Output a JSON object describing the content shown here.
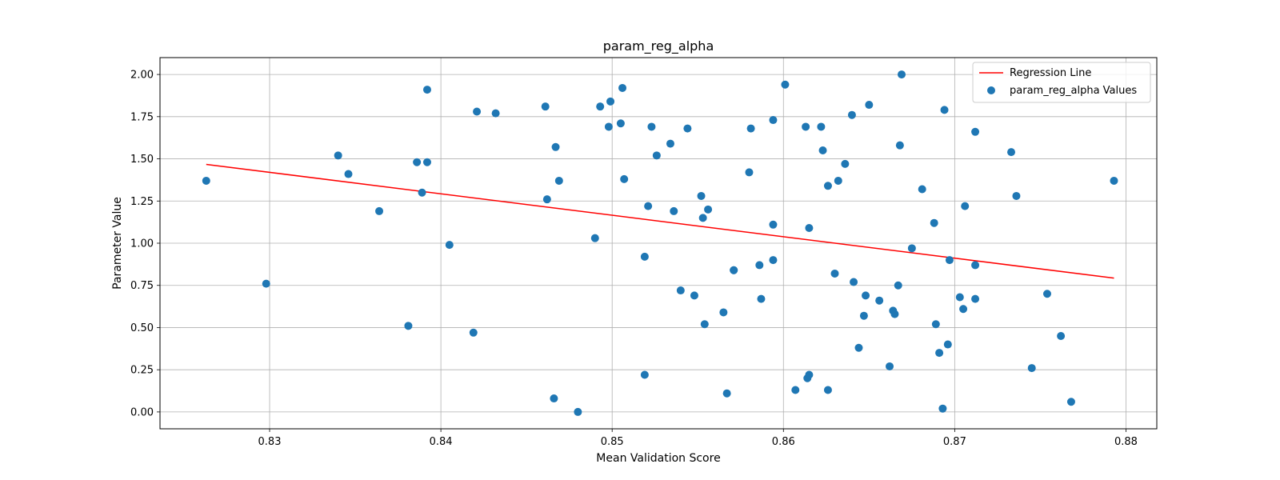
{
  "chart_data": {
    "type": "scatter",
    "title": "param_reg_alpha",
    "xlabel": "Mean Validation Score",
    "ylabel": "Parameter Value",
    "xlim": [
      0.8236,
      0.8818
    ],
    "ylim": [
      -0.1,
      2.1
    ],
    "xticks": [
      0.83,
      0.84,
      0.85,
      0.86,
      0.87,
      0.88
    ],
    "xtick_labels": [
      "0.83",
      "0.84",
      "0.85",
      "0.86",
      "0.87",
      "0.88"
    ],
    "yticks": [
      0.0,
      0.25,
      0.5,
      0.75,
      1.0,
      1.25,
      1.5,
      1.75,
      2.0
    ],
    "ytick_labels": [
      "0.00",
      "0.25",
      "0.50",
      "0.75",
      "1.00",
      "1.25",
      "1.50",
      "1.75",
      "2.00"
    ],
    "grid": true,
    "legend_position": "top-right",
    "colors": {
      "scatter": "#1f77b4",
      "regression": "#ff0000"
    },
    "regression": {
      "name": "Regression Line",
      "x": [
        0.8263,
        0.8793
      ],
      "y": [
        1.467,
        0.793
      ]
    },
    "series": [
      {
        "name": "param_reg_alpha Values",
        "points": [
          [
            0.8263,
            1.37
          ],
          [
            0.8298,
            0.76
          ],
          [
            0.834,
            1.52
          ],
          [
            0.8346,
            1.41
          ],
          [
            0.8364,
            1.19
          ],
          [
            0.8381,
            0.51
          ],
          [
            0.8386,
            1.48
          ],
          [
            0.8389,
            1.3
          ],
          [
            0.8392,
            1.48
          ],
          [
            0.8392,
            1.91
          ],
          [
            0.8405,
            0.99
          ],
          [
            0.8419,
            0.47
          ],
          [
            0.8421,
            1.78
          ],
          [
            0.8432,
            1.77
          ],
          [
            0.8461,
            1.81
          ],
          [
            0.8462,
            1.26
          ],
          [
            0.8466,
            0.08
          ],
          [
            0.8467,
            1.57
          ],
          [
            0.8469,
            1.37
          ],
          [
            0.848,
            0.0
          ],
          [
            0.849,
            1.03
          ],
          [
            0.8493,
            1.81
          ],
          [
            0.8498,
            1.69
          ],
          [
            0.8499,
            1.84
          ],
          [
            0.8505,
            1.71
          ],
          [
            0.8506,
            1.92
          ],
          [
            0.8507,
            1.38
          ],
          [
            0.8519,
            0.92
          ],
          [
            0.8519,
            0.22
          ],
          [
            0.8521,
            1.22
          ],
          [
            0.8523,
            1.69
          ],
          [
            0.8526,
            1.52
          ],
          [
            0.8534,
            1.59
          ],
          [
            0.8536,
            1.19
          ],
          [
            0.854,
            0.72
          ],
          [
            0.8544,
            1.68
          ],
          [
            0.8548,
            0.69
          ],
          [
            0.8552,
            1.28
          ],
          [
            0.8553,
            1.15
          ],
          [
            0.8554,
            0.52
          ],
          [
            0.8556,
            1.2
          ],
          [
            0.8565,
            0.59
          ],
          [
            0.8567,
            0.11
          ],
          [
            0.8571,
            0.84
          ],
          [
            0.8571,
            0.84
          ],
          [
            0.858,
            1.42
          ],
          [
            0.8581,
            1.68
          ],
          [
            0.8586,
            0.87
          ],
          [
            0.8587,
            0.67
          ],
          [
            0.8594,
            0.9
          ],
          [
            0.8594,
            1.11
          ],
          [
            0.8594,
            1.73
          ],
          [
            0.8601,
            1.94
          ],
          [
            0.8607,
            0.13
          ],
          [
            0.8613,
            1.69
          ],
          [
            0.8614,
            0.2
          ],
          [
            0.8615,
            1.09
          ],
          [
            0.8615,
            0.22
          ],
          [
            0.8622,
            1.69
          ],
          [
            0.8623,
            1.55
          ],
          [
            0.8626,
            1.34
          ],
          [
            0.8626,
            0.13
          ],
          [
            0.863,
            0.82
          ],
          [
            0.8632,
            1.37
          ],
          [
            0.8636,
            1.47
          ],
          [
            0.864,
            1.76
          ],
          [
            0.8641,
            0.77
          ],
          [
            0.8644,
            0.38
          ],
          [
            0.8647,
            0.57
          ],
          [
            0.8648,
            0.69
          ],
          [
            0.865,
            1.82
          ],
          [
            0.8656,
            0.66
          ],
          [
            0.8662,
            0.27
          ],
          [
            0.8664,
            0.6
          ],
          [
            0.8665,
            0.58
          ],
          [
            0.8667,
            0.75
          ],
          [
            0.8668,
            1.58
          ],
          [
            0.8669,
            2.0
          ],
          [
            0.8675,
            0.97
          ],
          [
            0.8681,
            1.32
          ],
          [
            0.8688,
            1.12
          ],
          [
            0.8689,
            0.52
          ],
          [
            0.8691,
            0.35
          ],
          [
            0.8693,
            0.02
          ],
          [
            0.8694,
            1.79
          ],
          [
            0.8696,
            0.4
          ],
          [
            0.8697,
            0.9
          ],
          [
            0.8703,
            0.68
          ],
          [
            0.8705,
            0.61
          ],
          [
            0.8706,
            1.22
          ],
          [
            0.8712,
            1.66
          ],
          [
            0.8712,
            0.87
          ],
          [
            0.8712,
            0.67
          ],
          [
            0.8733,
            1.54
          ],
          [
            0.8736,
            1.28
          ],
          [
            0.8745,
            0.26
          ],
          [
            0.8754,
            0.7
          ],
          [
            0.8762,
            0.45
          ],
          [
            0.8768,
            0.06
          ],
          [
            0.8793,
            1.37
          ]
        ]
      }
    ]
  }
}
